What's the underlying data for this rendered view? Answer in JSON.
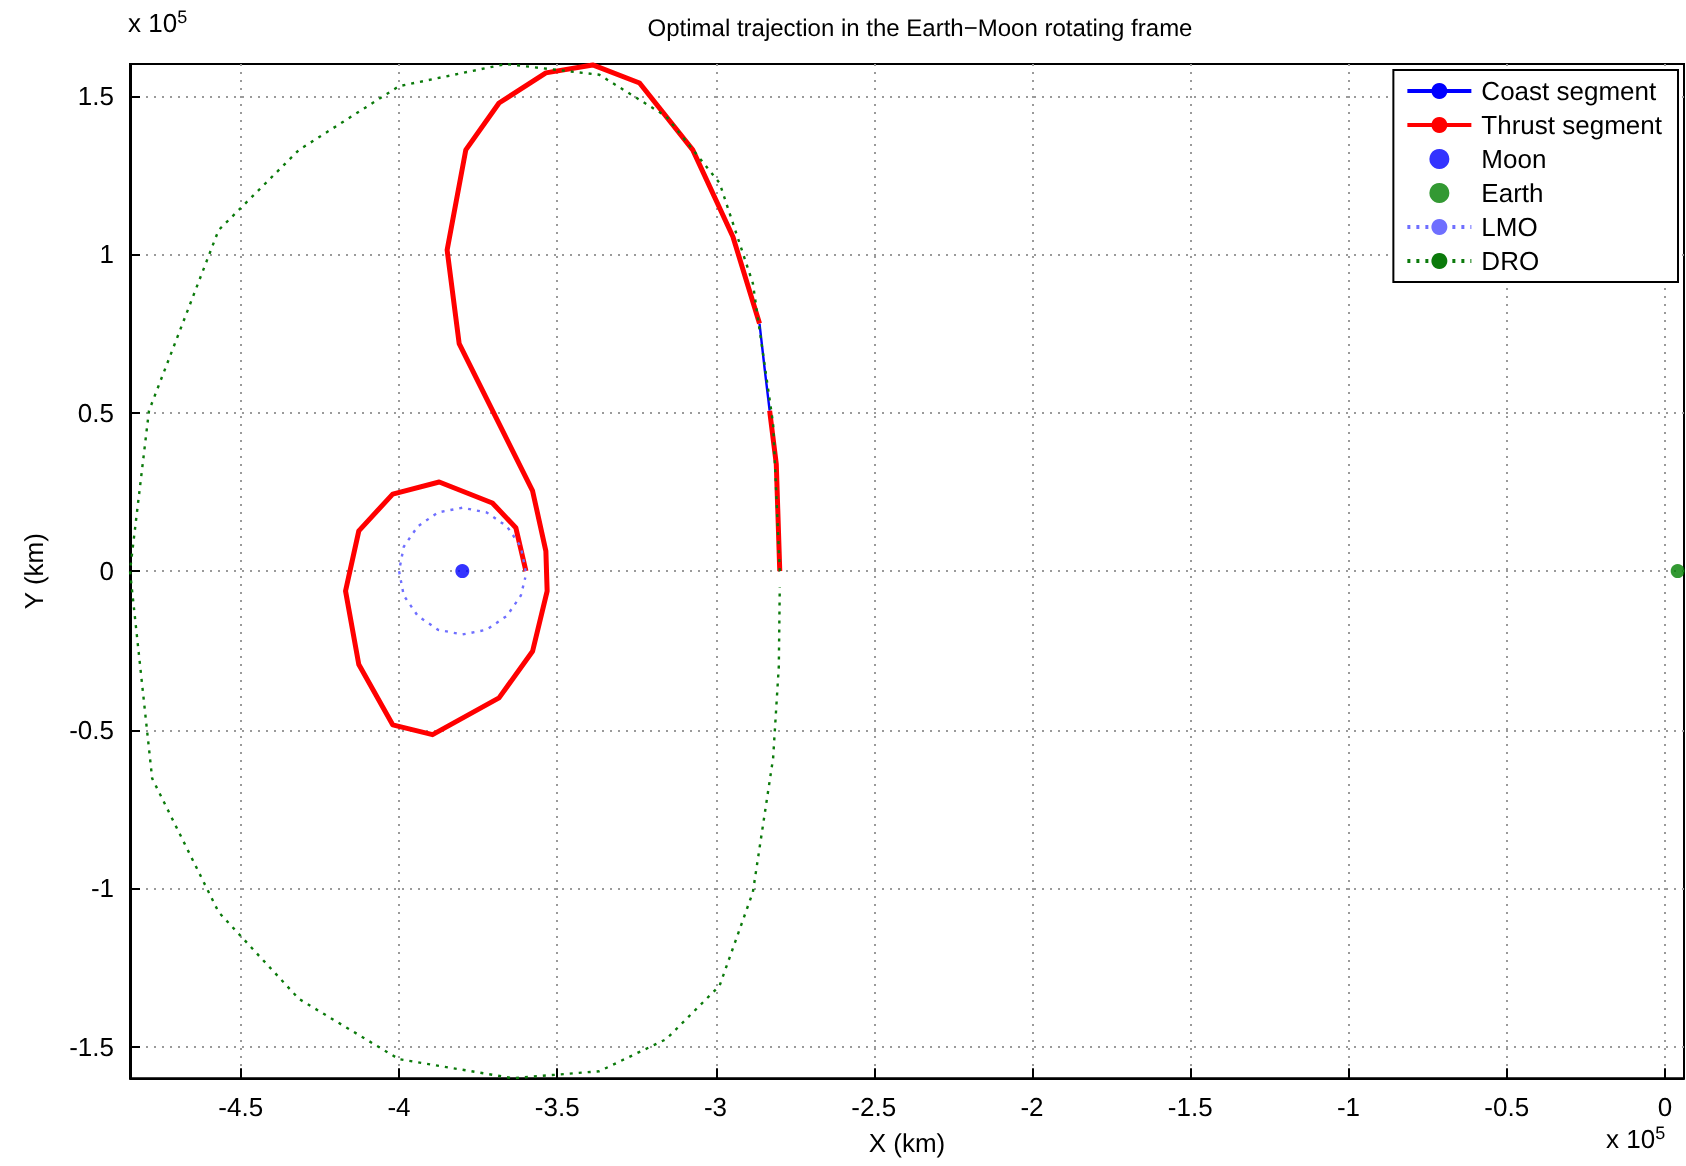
{
  "chart_data": {
    "type": "line",
    "title": "Optimal trajection in the Earth−Moon rotating frame",
    "xlabel": "X (km)",
    "ylabel": "Y (km)",
    "annotations": [
      "x 10$^{5}$",
      "x 10$^{5}$"
    ],
    "xlim": [
      -4.85,
      0.06
    ],
    "xticks": [
      -4.5,
      -4,
      -3.5,
      -3,
      -2.5,
      -2,
      -1.5,
      -1,
      -0.5,
      0
    ],
    "ylim": [
      -1.6,
      1.6
    ],
    "yticks": [
      -1.5,
      -1,
      -0.5,
      0,
      0.5,
      1,
      1.5
    ],
    "grid": true,
    "legend": "top right",
    "series": [
      {
        "name": "Coast segment",
        "color": "#0000ff",
        "line_style": "solid",
        "marker": "none",
        "x": [
          -2.829,
          -2.845,
          -2.861
        ],
        "values": [
          0.506,
          0.64,
          0.781
        ]
      },
      {
        "name": "Thrust segment",
        "color": "#ff0000",
        "line_style": "solid",
        "marker": "none",
        "x": [
          -2.797,
          -2.808,
          -2.829,
          null,
          -2.861,
          -2.945,
          -3.072,
          -3.24,
          -3.388,
          -3.536,
          -3.684,
          -3.789,
          -3.848,
          -3.81,
          -3.684,
          -3.578,
          -3.536,
          -3.532,
          -3.578,
          -3.684,
          -3.894,
          -4.02,
          -4.127,
          -4.169,
          -4.127,
          -4.02,
          -3.873,
          -3.705,
          -3.631,
          -3.599
        ],
        "values": [
          0,
          0.338,
          0.506,
          null,
          0.781,
          1.055,
          1.329,
          1.54,
          1.597,
          1.572,
          1.477,
          1.329,
          1.013,
          0.718,
          0.465,
          0.253,
          0.063,
          -0.063,
          -0.253,
          -0.4,
          -0.516,
          -0.485,
          -0.295,
          -0.063,
          0.127,
          0.243,
          0.281,
          0.215,
          0.137,
          0
        ]
      },
      {
        "name": "Moon",
        "type": "scatter",
        "color": "#0000ff",
        "marker": "circle",
        "x": [
          -3.8
        ],
        "values": [
          0
        ]
      },
      {
        "name": "Earth",
        "type": "scatter",
        "color": "#008000",
        "marker": "circle",
        "x": [
          0.04
        ],
        "values": [
          0
        ]
      },
      {
        "name": "LMO",
        "color": "#6f6fff",
        "line_style": "dotted",
        "marker": "none",
        "x": [
          -3.6,
          -3.615,
          -3.659,
          -3.723,
          -3.8,
          -3.877,
          -3.941,
          -3.985,
          -4.0,
          -3.985,
          -3.941,
          -3.877,
          -3.8,
          -3.723,
          -3.659,
          -3.615,
          -3.601
        ],
        "values": [
          0,
          0.077,
          0.141,
          0.185,
          0.2,
          0.185,
          0.141,
          0.077,
          0,
          -0.077,
          -0.141,
          -0.185,
          -0.2,
          -0.185,
          -0.141,
          -0.077,
          -0.02
        ]
      },
      {
        "name": "DRO",
        "color": "#0b7a0b",
        "line_style": "dotted",
        "marker": "none",
        "x": [
          -2.797,
          -2.818,
          -2.882,
          -2.987,
          -3.156,
          -3.367,
          -3.663,
          -4.0,
          -4.316,
          -4.57,
          -4.79,
          -4.85,
          -4.78,
          -4.57,
          -4.316,
          -4.0,
          -3.64,
          -3.367,
          -3.156,
          -2.987,
          -2.882,
          -2.818,
          -2.8,
          -2.797
        ],
        "values": [
          0,
          0.465,
          0.908,
          1.224,
          1.435,
          1.566,
          1.6,
          1.53,
          1.329,
          1.076,
          0.506,
          0,
          -0.654,
          -1.076,
          -1.35,
          -1.54,
          -1.6,
          -1.578,
          -1.477,
          -1.308,
          -1.013,
          -0.59,
          -0.3,
          -0.05
        ]
      }
    ]
  }
}
